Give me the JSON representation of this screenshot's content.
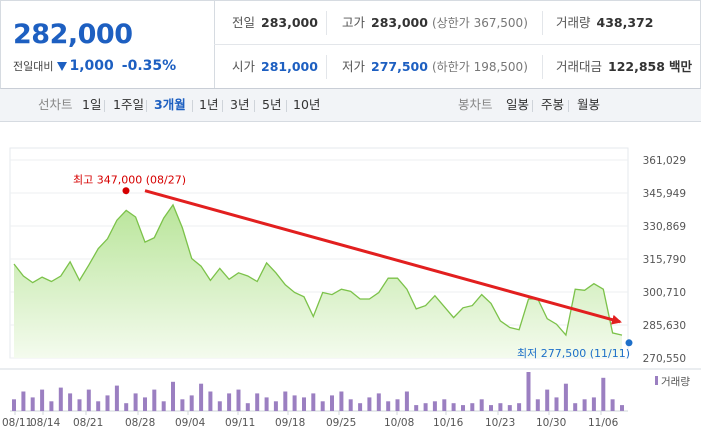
{
  "header": {
    "price": "282,000",
    "diff_label": "전일대비",
    "diff_value": "1,000",
    "diff_pct": "-0.35%",
    "direction_color": "#1d5fc1"
  },
  "stats": {
    "prev_label": "전일",
    "prev_value": "283,000",
    "high_label": "고가",
    "high_value": "283,000",
    "high_limit": "(상한가 367,500)",
    "volume_label": "거래량",
    "volume_value": "438,372",
    "open_label": "시가",
    "open_value": "281,000",
    "low_label": "저가",
    "low_value": "277,500",
    "low_limit": "(하한가 198,500)",
    "amount_label": "거래대금",
    "amount_value": "122,858",
    "amount_unit": "백만"
  },
  "tabs": {
    "line_label": "선차트",
    "line_periods": [
      "1일",
      "1주일",
      "3개월",
      "1년",
      "3년",
      "5년",
      "10년"
    ],
    "active_period": "3개월",
    "candle_label": "봉차트",
    "candle_periods": [
      "일봉",
      "주봉",
      "월봉"
    ]
  },
  "chart_data": {
    "type": "area",
    "y_ticks": [
      "361,029",
      "345,949",
      "330,869",
      "315,790",
      "300,710",
      "285,630",
      "270,550"
    ],
    "ylim": [
      270550,
      361029
    ],
    "x_labels": [
      "08/11",
      "08/14",
      "08/21",
      "08/28",
      "09/04",
      "09/11",
      "09/18",
      "09/25",
      "10/08",
      "10/16",
      "10/23",
      "10/30",
      "11/06"
    ],
    "prices": [
      313500,
      308000,
      305000,
      307500,
      305500,
      308000,
      314500,
      306000,
      313000,
      320500,
      325000,
      333500,
      338000,
      335000,
      323500,
      325500,
      334500,
      340500,
      330000,
      316000,
      312500,
      306000,
      311500,
      306500,
      309500,
      308000,
      305500,
      314000,
      309500,
      304000,
      300500,
      298500,
      289500,
      300500,
      299500,
      302000,
      301000,
      297500,
      297500,
      300500,
      307000,
      307000,
      302000,
      293000,
      294500,
      299000,
      294000,
      289000,
      293500,
      294500,
      299500,
      295500,
      287500,
      284500,
      283500,
      297500,
      297500,
      288500,
      286000,
      281000,
      302000,
      301500,
      304500,
      302000,
      282000,
      281000
    ],
    "volumes": [
      0.3,
      0.5,
      0.35,
      0.55,
      0.25,
      0.6,
      0.45,
      0.3,
      0.55,
      0.25,
      0.4,
      0.65,
      0.2,
      0.45,
      0.35,
      0.55,
      0.25,
      0.75,
      0.3,
      0.4,
      0.7,
      0.5,
      0.25,
      0.45,
      0.55,
      0.2,
      0.45,
      0.35,
      0.25,
      0.5,
      0.4,
      0.35,
      0.45,
      0.25,
      0.4,
      0.5,
      0.3,
      0.2,
      0.35,
      0.45,
      0.25,
      0.3,
      0.5,
      0.15,
      0.2,
      0.25,
      0.3,
      0.2,
      0.15,
      0.2,
      0.3,
      0.15,
      0.2,
      0.15,
      0.2,
      1.0,
      0.3,
      0.55,
      0.35,
      0.7,
      0.2,
      0.3,
      0.35,
      0.85,
      0.3,
      0.15
    ],
    "volume_label": "거래량",
    "max_label": "최고 347,000 (08/27)",
    "max_value": 347000,
    "min_label": "최저 277,500 (11/11)",
    "min_value": 277500,
    "colors": {
      "line": "#7cc24a",
      "fill_top": "#b9e59a",
      "fill_bottom": "#f4fbee",
      "volume": "#9b7fc1",
      "max": "#d60000",
      "min": "#1d6fc9",
      "trend": "#e21f1f"
    }
  }
}
